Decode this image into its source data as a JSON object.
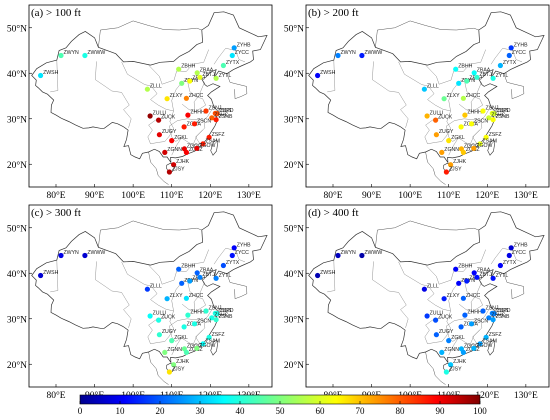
{
  "panels": [
    {
      "title": "(a) > 100 ft",
      "values": {
        "ZYHB": 28,
        "ZYCC": 35,
        "ZYTX": 45,
        "ZBAA": 55,
        "ZBTJ": 60,
        "ZBYN": 50,
        "ZBHH": 55,
        "ZBSJ": 62,
        "ZYTL": 55,
        "ZLXY": 65,
        "ZHCC": 75,
        "ZLLL": 55,
        "ZULU": 98,
        "ZUCK": 95,
        "ZHHH": 88,
        "ZSNJ": 82,
        "ZSSS": 80,
        "ZSPD": 80,
        "ZSHC": 78,
        "ZSNB": 85,
        "ZGHA": 85,
        "ZUGY": 90,
        "ZGKL": 88,
        "ZSAM": 85,
        "ZSFZ": 85,
        "ZSCN": 85,
        "ZGGG": 90,
        "ZGSZ": 88,
        "ZGOW": 90,
        "ZGNN": 92,
        "ZJHK": 92,
        "ZJSY": 95,
        "ZWYN": 45,
        "ZWWW": 40,
        "ZWSH": 35
      }
    },
    {
      "title": "(b) > 200 ft",
      "values": {
        "ZYHB": 18,
        "ZYCC": 22,
        "ZYTX": 30,
        "ZBAA": 38,
        "ZBTJ": 42,
        "ZBYN": 35,
        "ZBHH": 38,
        "ZBSJ": 45,
        "ZYTL": 40,
        "ZLXY": 48,
        "ZHCC": 55,
        "ZLLL": 32,
        "ZULU": 70,
        "ZUCK": 78,
        "ZHHH": 68,
        "ZSNJ": 62,
        "ZSSS": 60,
        "ZSPD": 58,
        "ZSHC": 58,
        "ZSNB": 62,
        "ZGHA": 62,
        "ZUGY": 72,
        "ZGKL": 65,
        "ZSAM": 60,
        "ZSFZ": 62,
        "ZSCN": 62,
        "ZGGG": 70,
        "ZGSZ": 68,
        "ZGOW": 72,
        "ZGNN": 72,
        "ZJHK": 72,
        "ZJSY": 85,
        "ZWYN": 25,
        "ZWWW": 15,
        "ZWSH": 12
      }
    },
    {
      "title": "(c) > 300 ft",
      "values": {
        "ZYHB": 12,
        "ZYCC": 14,
        "ZYTX": 20,
        "ZBAA": 22,
        "ZBTJ": 25,
        "ZBYN": 22,
        "ZBHH": 22,
        "ZBSJ": 28,
        "ZYTL": 25,
        "ZLXY": 30,
        "ZHCC": 35,
        "ZLLL": 18,
        "ZULU": 38,
        "ZUCK": 40,
        "ZHHH": 42,
        "ZSNJ": 42,
        "ZSSS": 40,
        "ZSPD": 40,
        "ZSHC": 40,
        "ZSNB": 42,
        "ZGHA": 40,
        "ZUGY": 42,
        "ZGKL": 45,
        "ZSAM": 38,
        "ZSFZ": 40,
        "ZSCN": 40,
        "ZGGG": 48,
        "ZGSZ": 45,
        "ZGOW": 50,
        "ZGNN": 50,
        "ZJHK": 50,
        "ZJSY": 65,
        "ZWYN": 10,
        "ZWWW": 8,
        "ZWSH": 8
      }
    },
    {
      "title": "(d) > 400 ft",
      "values": {
        "ZYHB": 8,
        "ZYCC": 10,
        "ZYTX": 12,
        "ZBAA": 12,
        "ZBTJ": 14,
        "ZBYN": 12,
        "ZBHH": 12,
        "ZBSJ": 15,
        "ZYTL": 14,
        "ZLXY": 15,
        "ZHCC": 22,
        "ZLLL": 10,
        "ZULU": 18,
        "ZUCK": 20,
        "ZHHH": 22,
        "ZSNJ": 22,
        "ZSSS": 25,
        "ZSPD": 25,
        "ZSHC": 25,
        "ZSNB": 28,
        "ZGHA": 22,
        "ZUGY": 22,
        "ZGKL": 25,
        "ZSAM": 28,
        "ZSFZ": 30,
        "ZSCN": 28,
        "ZGGG": 30,
        "ZGSZ": 28,
        "ZGOW": 30,
        "ZGNN": 30,
        "ZJHK": 32,
        "ZJSY": 40,
        "ZWYN": 6,
        "ZWWW": 4,
        "ZWSH": 5
      }
    }
  ],
  "stations": [
    {
      "id": "ZWYN",
      "lon": 81.3,
      "lat": 43.9
    },
    {
      "id": "ZWWW",
      "lon": 87.5,
      "lat": 43.9
    },
    {
      "id": "ZWSH",
      "lon": 76.0,
      "lat": 39.5
    },
    {
      "id": "ZLLL",
      "lon": 103.7,
      "lat": 36.5
    },
    {
      "id": "ZLXY",
      "lon": 108.8,
      "lat": 34.4
    },
    {
      "id": "ZBHH",
      "lon": 111.8,
      "lat": 40.9
    },
    {
      "id": "ZBYN",
      "lon": 112.6,
      "lat": 37.8
    },
    {
      "id": "ZBSJ",
      "lon": 114.7,
      "lat": 38.3
    },
    {
      "id": "ZBAA",
      "lon": 116.6,
      "lat": 40.1
    },
    {
      "id": "ZBTJ",
      "lon": 117.3,
      "lat": 39.1
    },
    {
      "id": "ZYTL",
      "lon": 121.5,
      "lat": 38.9
    },
    {
      "id": "ZYTX",
      "lon": 123.4,
      "lat": 41.7
    },
    {
      "id": "ZYCC",
      "lon": 125.7,
      "lat": 43.9
    },
    {
      "id": "ZYHB",
      "lon": 126.2,
      "lat": 45.6
    },
    {
      "id": "ZHCC",
      "lon": 113.8,
      "lat": 34.5
    },
    {
      "id": "ZULU",
      "lon": 104.4,
      "lat": 30.6
    },
    {
      "id": "ZUCK",
      "lon": 106.6,
      "lat": 29.7
    },
    {
      "id": "ZHHH",
      "lon": 114.2,
      "lat": 30.8
    },
    {
      "id": "ZSNJ",
      "lon": 118.9,
      "lat": 31.7
    },
    {
      "id": "ZSSS",
      "lon": 121.3,
      "lat": 31.2
    },
    {
      "id": "ZSPD",
      "lon": 121.8,
      "lat": 31.1
    },
    {
      "id": "ZSHC",
      "lon": 120.4,
      "lat": 30.2
    },
    {
      "id": "ZSNB",
      "lon": 121.5,
      "lat": 29.8
    },
    {
      "id": "ZGHA",
      "lon": 113.2,
      "lat": 28.2
    },
    {
      "id": "ZUGY",
      "lon": 106.8,
      "lat": 26.5
    },
    {
      "id": "ZGKL",
      "lon": 110.0,
      "lat": 25.2
    },
    {
      "id": "ZSFZ",
      "lon": 119.7,
      "lat": 25.9
    },
    {
      "id": "ZSAM",
      "lon": 118.1,
      "lat": 24.5
    },
    {
      "id": "ZSCN",
      "lon": 115.9,
      "lat": 28.9
    },
    {
      "id": "ZGGG",
      "lon": 113.3,
      "lat": 23.4
    },
    {
      "id": "ZGSZ",
      "lon": 113.8,
      "lat": 22.6
    },
    {
      "id": "ZGOW",
      "lon": 116.5,
      "lat": 23.5
    },
    {
      "id": "ZGNN",
      "lon": 108.2,
      "lat": 22.6
    },
    {
      "id": "ZJHK",
      "lon": 110.5,
      "lat": 19.9
    },
    {
      "id": "ZJSY",
      "lon": 109.4,
      "lat": 18.3
    }
  ],
  "axes": {
    "lon_ticks": [
      "80°E",
      "90°E",
      "100°E",
      "110°E",
      "120°E",
      "130°E"
    ],
    "lat_ticks": [
      "50°N",
      "40°N",
      "30°N",
      "20°N"
    ],
    "lon_values": [
      80,
      90,
      100,
      110,
      120,
      130
    ],
    "lat_values": [
      50,
      40,
      30,
      20
    ],
    "lon_range": [
      73,
      136
    ],
    "lat_range": [
      15,
      55
    ]
  },
  "colorbar": {
    "ticks": [
      "0",
      "10",
      "20",
      "30",
      "40",
      "50",
      "60",
      "70",
      "80",
      "90",
      "100"
    ],
    "range": [
      0,
      100
    ],
    "colormap": "jet"
  }
}
